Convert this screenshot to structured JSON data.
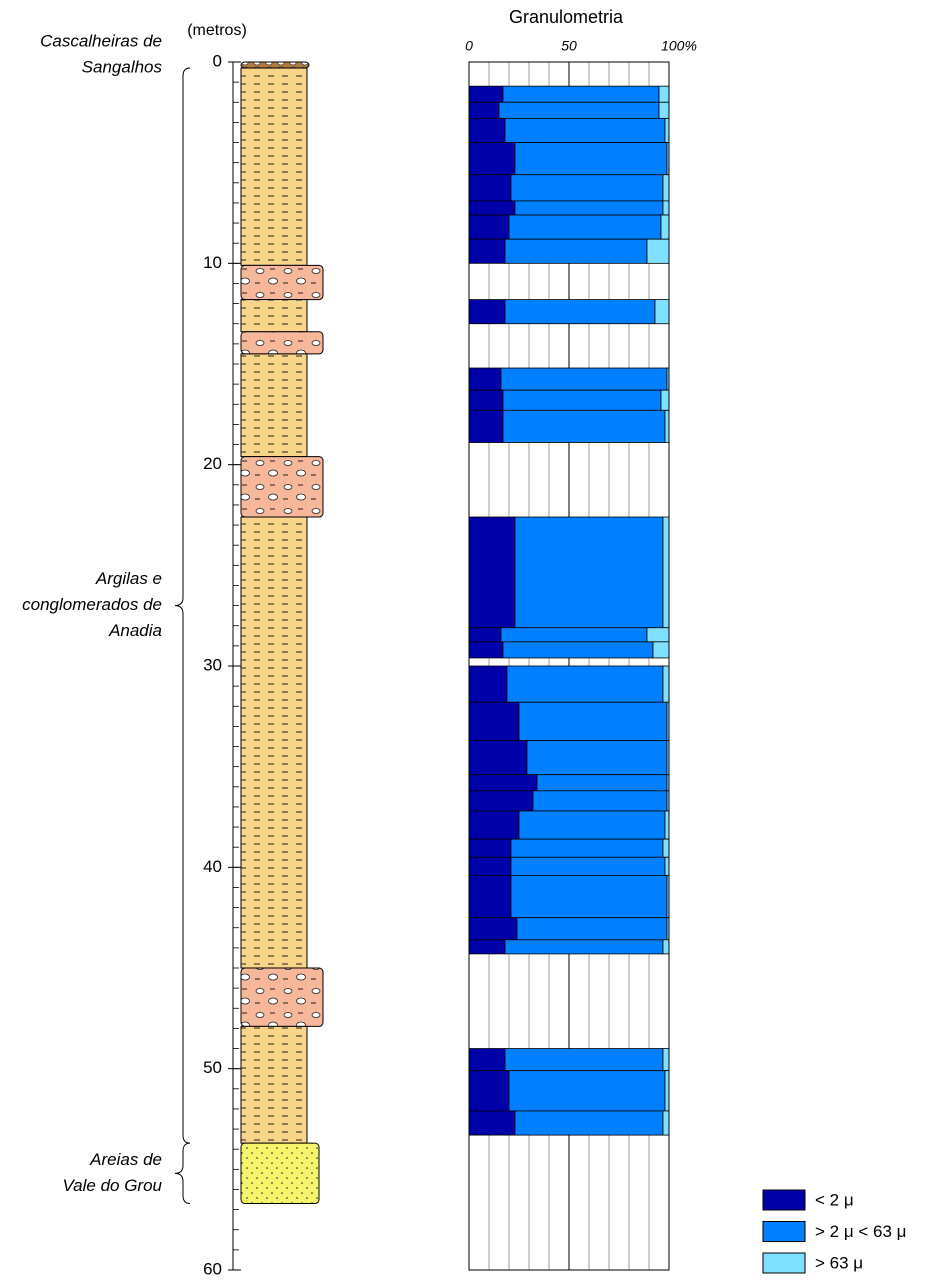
{
  "chart_data": {
    "type": "grain-size-log",
    "title": "Granulometria",
    "depth_label": "(metros)",
    "ylim": [
      0,
      60
    ],
    "yticks": [
      0,
      10,
      20,
      30,
      40,
      50,
      60
    ],
    "yminorticks": [
      0,
      1,
      2,
      3,
      4,
      5,
      6,
      7,
      8,
      9,
      10,
      11,
      12,
      13,
      14,
      15,
      16,
      17,
      18,
      19,
      20,
      21,
      22,
      23,
      24,
      25,
      26,
      27,
      28,
      29,
      30,
      31,
      32,
      33,
      34,
      35,
      36,
      37,
      38,
      39,
      40,
      41,
      42,
      43,
      44,
      45,
      46,
      47,
      48,
      49,
      50,
      51,
      52,
      53,
      54,
      55,
      56,
      57,
      58,
      59,
      60
    ],
    "xlim": [
      0,
      100
    ],
    "xticks": [
      0,
      50,
      {
        "value": 100,
        "label": "100%"
      }
    ],
    "xgrid": [
      10,
      20,
      30,
      40,
      60,
      70,
      80,
      90
    ],
    "depth_top": [
      1.2,
      2.0,
      2.8,
      4.0,
      5.6,
      6.9,
      7.6,
      8.8,
      11.8,
      15.2,
      16.3,
      17.3,
      22.6,
      28.1,
      28.8,
      30.0,
      31.8,
      33.7,
      35.4,
      36.2,
      37.2,
      38.6,
      39.5,
      40.4,
      42.5,
      43.6,
      49.0,
      50.1,
      52.1
    ],
    "depth_bottom": [
      2.0,
      2.8,
      4.0,
      5.6,
      6.9,
      7.6,
      8.8,
      10.0,
      13.0,
      16.3,
      17.3,
      18.9,
      28.1,
      28.8,
      29.6,
      31.8,
      33.7,
      35.4,
      36.2,
      37.2,
      38.6,
      39.5,
      40.4,
      42.5,
      43.6,
      44.3,
      50.1,
      52.1,
      53.3
    ],
    "series": [
      {
        "name": "< 2 μ",
        "color": "#0000a8",
        "values": [
          17,
          15,
          18,
          23,
          21,
          23,
          20,
          18,
          18,
          16,
          17,
          17,
          23,
          16,
          17,
          19,
          25,
          29,
          34,
          32,
          25,
          21,
          21,
          21,
          24,
          18,
          18,
          20,
          23
        ]
      },
      {
        "name": "> 2 μ < 63 μ",
        "color": "#0080ff",
        "values": [
          78,
          80,
          80,
          76,
          76,
          74,
          76,
          71,
          75,
          83,
          79,
          81,
          74,
          73,
          75,
          78,
          74,
          70,
          65,
          67,
          73,
          76,
          77,
          78,
          75,
          79,
          79,
          78,
          74
        ]
      },
      {
        "name": "> 63 μ",
        "color": "#80e0ff",
        "values": [
          5,
          5,
          2,
          1,
          3,
          3,
          4,
          11,
          7,
          1,
          4,
          2,
          3,
          11,
          8,
          3,
          1,
          1,
          1,
          1,
          2,
          3,
          2,
          1,
          1,
          3,
          3,
          2,
          3
        ]
      }
    ],
    "lithology": [
      {
        "top": 0,
        "bottom": 0.3,
        "type": "gravel"
      },
      {
        "top": 0.3,
        "bottom": 10.1,
        "type": "clay"
      },
      {
        "top": 10.1,
        "bottom": 11.8,
        "type": "conglomerate"
      },
      {
        "top": 11.8,
        "bottom": 13.4,
        "type": "clay"
      },
      {
        "top": 13.4,
        "bottom": 14.5,
        "type": "conglomerate"
      },
      {
        "top": 14.5,
        "bottom": 19.6,
        "type": "clay"
      },
      {
        "top": 19.6,
        "bottom": 22.6,
        "type": "conglomerate"
      },
      {
        "top": 22.6,
        "bottom": 45.0,
        "type": "clay"
      },
      {
        "top": 45.0,
        "bottom": 47.9,
        "type": "conglomerate"
      },
      {
        "top": 47.9,
        "bottom": 53.7,
        "type": "clay"
      },
      {
        "top": 53.7,
        "bottom": 56.7,
        "type": "sand"
      }
    ],
    "formations": [
      {
        "lines": [
          "Cascalheiras de",
          "Sangalhos"
        ],
        "top": 0,
        "bottom": 0.3
      },
      {
        "lines": [
          "Argilas e",
          "conglomerados de",
          "Anadia"
        ],
        "top": 0.3,
        "bottom": 53.7
      },
      {
        "lines": [
          "Areias de",
          "Vale do Grou"
        ],
        "top": 53.7,
        "bottom": 56.7
      }
    ]
  }
}
